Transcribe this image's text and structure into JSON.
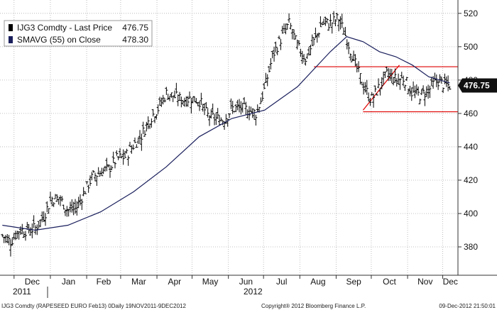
{
  "chart_data": {
    "type": "ohlc-line",
    "instrument": "IJG3 Comdty",
    "legend": [
      {
        "label": "IJG3 Comdty - Last Price",
        "value": "476.75",
        "color": "#000000"
      },
      {
        "label": "SMAVG (55) on Close",
        "value": "478.30",
        "color": "#1a1f5c"
      }
    ],
    "last_price_tag": "476.75",
    "ylim": [
      363,
      528
    ],
    "y_ticks": [
      "380",
      "400",
      "420",
      "440",
      "460",
      "480",
      "500",
      "520"
    ],
    "x_months": [
      "Dec",
      "Jan",
      "Feb",
      "Mar",
      "Apr",
      "May",
      "Jun",
      "Jul",
      "Aug",
      "Sep",
      "Oct",
      "Nov",
      "Dec"
    ],
    "x_years": [
      "2011",
      "2012"
    ],
    "price_series": [
      [
        "2011-11-21",
        387
      ],
      [
        "2011-11-28",
        383
      ],
      [
        "2011-12-05",
        390
      ],
      [
        "2011-12-12",
        390
      ],
      [
        "2011-12-19",
        391
      ],
      [
        "2011-12-26",
        398
      ],
      [
        "2012-01-02",
        409
      ],
      [
        "2012-01-09",
        409
      ],
      [
        "2012-01-16",
        402
      ],
      [
        "2012-01-23",
        403
      ],
      [
        "2012-01-30",
        413
      ],
      [
        "2012-02-06",
        422
      ],
      [
        "2012-02-13",
        425
      ],
      [
        "2012-02-20",
        427
      ],
      [
        "2012-02-27",
        433
      ],
      [
        "2012-03-05",
        434
      ],
      [
        "2012-03-12",
        441
      ],
      [
        "2012-03-19",
        447
      ],
      [
        "2012-03-26",
        457
      ],
      [
        "2012-04-02",
        463
      ],
      [
        "2012-04-09",
        472
      ],
      [
        "2012-04-16",
        470
      ],
      [
        "2012-04-23",
        468
      ],
      [
        "2012-04-30",
        469
      ],
      [
        "2012-05-07",
        468
      ],
      [
        "2012-05-14",
        459
      ],
      [
        "2012-05-21",
        457
      ],
      [
        "2012-05-28",
        456
      ],
      [
        "2012-06-04",
        463
      ],
      [
        "2012-06-11",
        463
      ],
      [
        "2012-06-18",
        462
      ],
      [
        "2012-06-25",
        460
      ],
      [
        "2012-07-02",
        475
      ],
      [
        "2012-07-09",
        495
      ],
      [
        "2012-07-16",
        505
      ],
      [
        "2012-07-23",
        514
      ],
      [
        "2012-07-30",
        500
      ],
      [
        "2012-08-06",
        493
      ],
      [
        "2012-08-13",
        503
      ],
      [
        "2012-08-20",
        514
      ],
      [
        "2012-08-27",
        514
      ],
      [
        "2012-09-03",
        517
      ],
      [
        "2012-09-10",
        505
      ],
      [
        "2012-09-17",
        490
      ],
      [
        "2012-09-24",
        477
      ],
      [
        "2012-10-01",
        468
      ],
      [
        "2012-10-08",
        476
      ],
      [
        "2012-10-15",
        484
      ],
      [
        "2012-10-22",
        480
      ],
      [
        "2012-10-29",
        481
      ],
      [
        "2012-11-05",
        472
      ],
      [
        "2012-11-12",
        471
      ],
      [
        "2012-11-19",
        474
      ],
      [
        "2012-11-26",
        480
      ],
      [
        "2012-12-03",
        477
      ],
      [
        "2012-12-07",
        476.75
      ]
    ],
    "sma_series": [
      [
        "2011-11-21",
        393
      ],
      [
        "2011-12-19",
        390
      ],
      [
        "2012-01-16",
        393
      ],
      [
        "2012-02-13",
        401
      ],
      [
        "2012-03-12",
        413
      ],
      [
        "2012-04-09",
        428
      ],
      [
        "2012-05-07",
        446
      ],
      [
        "2012-06-04",
        457
      ],
      [
        "2012-07-02",
        462
      ],
      [
        "2012-07-30",
        476
      ],
      [
        "2012-08-27",
        497
      ],
      [
        "2012-09-10",
        506
      ],
      [
        "2012-09-24",
        503
      ],
      [
        "2012-10-08",
        497
      ],
      [
        "2012-10-22",
        494
      ],
      [
        "2012-11-05",
        489
      ],
      [
        "2012-11-19",
        482
      ],
      [
        "2012-12-07",
        478.3
      ]
    ],
    "annotations": [
      {
        "type": "hline",
        "y": 488,
        "from": "2012-08-13",
        "to": "2012-12-14",
        "color": "#e00000"
      },
      {
        "type": "hline",
        "y": 461,
        "from": "2012-09-24",
        "to": "2012-12-14",
        "color": "#e00000"
      },
      {
        "type": "trendline",
        "from": [
          "2012-09-24",
          462
        ],
        "to": [
          "2012-10-25",
          489
        ],
        "color": "#e00000"
      }
    ]
  },
  "footer": {
    "left": "IJG3 Comdty (RAPESEED  EURO   Feb13) 0Daily 19NOV2011-9DEC2012",
    "center": "Copyright® 2012 Bloomberg Finance L.P.",
    "right": "09-Dec-2012 21:50:01"
  },
  "colors": {
    "price": "#000000",
    "sma": "#1a1f5c",
    "annotation": "#e00000",
    "grid": "#b0b0b0",
    "tag_bg": "#111111"
  }
}
